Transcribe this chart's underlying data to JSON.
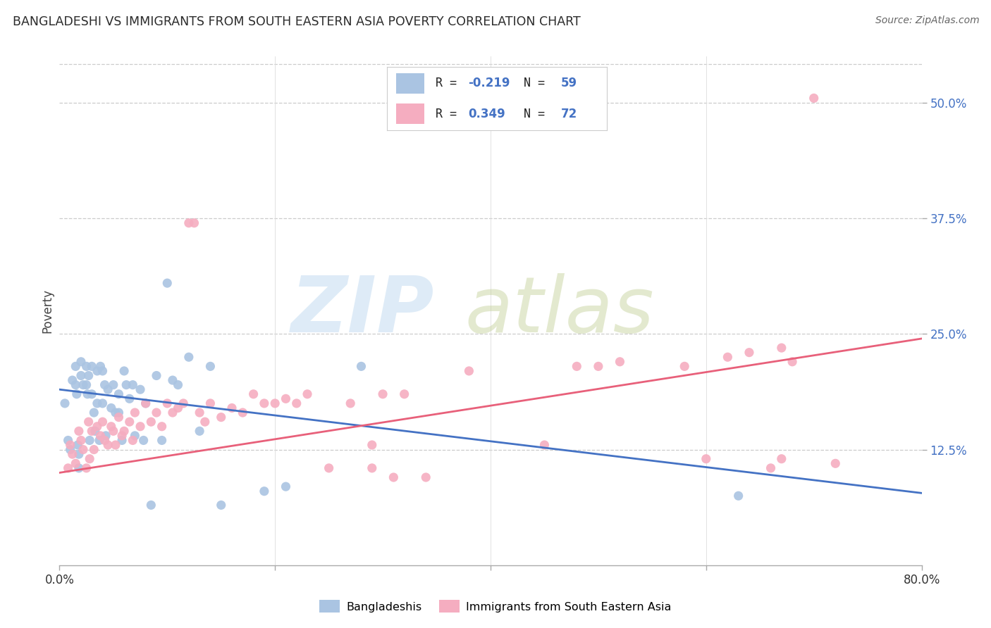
{
  "title": "BANGLADESHI VS IMMIGRANTS FROM SOUTH EASTERN ASIA POVERTY CORRELATION CHART",
  "source": "Source: ZipAtlas.com",
  "ylabel": "Poverty",
  "ytick_vals": [
    0.125,
    0.25,
    0.375,
    0.5
  ],
  "ytick_labels": [
    "12.5%",
    "25.0%",
    "37.5%",
    "50.0%"
  ],
  "xmin": 0.0,
  "xmax": 0.8,
  "ymin": 0.0,
  "ymax": 0.55,
  "color_blue": "#aac4e2",
  "color_pink": "#f5adc0",
  "line_blue": "#4472c4",
  "line_pink": "#e8607a",
  "label1": "Bangladeshis",
  "label2": "Immigrants from South Eastern Asia",
  "blue_line_start_y": 0.19,
  "blue_line_end_y": 0.078,
  "pink_line_start_y": 0.1,
  "pink_line_end_y": 0.245,
  "blue_x": [
    0.005,
    0.008,
    0.01,
    0.012,
    0.015,
    0.015,
    0.016,
    0.017,
    0.018,
    0.018,
    0.02,
    0.02,
    0.022,
    0.025,
    0.025,
    0.026,
    0.027,
    0.028,
    0.03,
    0.03,
    0.032,
    0.033,
    0.035,
    0.035,
    0.037,
    0.038,
    0.04,
    0.04,
    0.042,
    0.043,
    0.045,
    0.048,
    0.05,
    0.052,
    0.055,
    0.055,
    0.058,
    0.06,
    0.062,
    0.065,
    0.068,
    0.07,
    0.075,
    0.078,
    0.08,
    0.085,
    0.09,
    0.095,
    0.1,
    0.105,
    0.11,
    0.12,
    0.13,
    0.14,
    0.15,
    0.19,
    0.21,
    0.28,
    0.63
  ],
  "blue_y": [
    0.175,
    0.135,
    0.125,
    0.2,
    0.215,
    0.195,
    0.185,
    0.13,
    0.12,
    0.105,
    0.22,
    0.205,
    0.195,
    0.215,
    0.195,
    0.185,
    0.205,
    0.135,
    0.215,
    0.185,
    0.165,
    0.145,
    0.21,
    0.175,
    0.135,
    0.215,
    0.21,
    0.175,
    0.195,
    0.14,
    0.19,
    0.17,
    0.195,
    0.165,
    0.185,
    0.165,
    0.135,
    0.21,
    0.195,
    0.18,
    0.195,
    0.14,
    0.19,
    0.135,
    0.175,
    0.065,
    0.205,
    0.135,
    0.305,
    0.2,
    0.195,
    0.225,
    0.145,
    0.215,
    0.065,
    0.08,
    0.085,
    0.215,
    0.075
  ],
  "pink_x": [
    0.008,
    0.01,
    0.012,
    0.015,
    0.018,
    0.02,
    0.022,
    0.025,
    0.027,
    0.028,
    0.03,
    0.032,
    0.035,
    0.038,
    0.04,
    0.042,
    0.045,
    0.048,
    0.05,
    0.052,
    0.055,
    0.058,
    0.06,
    0.065,
    0.068,
    0.07,
    0.075,
    0.08,
    0.085,
    0.09,
    0.095,
    0.1,
    0.105,
    0.11,
    0.115,
    0.12,
    0.125,
    0.13,
    0.135,
    0.14,
    0.15,
    0.16,
    0.17,
    0.18,
    0.19,
    0.2,
    0.21,
    0.22,
    0.23,
    0.25,
    0.27,
    0.29,
    0.3,
    0.31,
    0.32,
    0.34,
    0.29,
    0.38,
    0.45,
    0.48,
    0.5,
    0.52,
    0.58,
    0.6,
    0.62,
    0.64,
    0.66,
    0.67,
    0.68,
    0.7,
    0.72,
    0.67
  ],
  "pink_y": [
    0.105,
    0.13,
    0.12,
    0.11,
    0.145,
    0.135,
    0.125,
    0.105,
    0.155,
    0.115,
    0.145,
    0.125,
    0.15,
    0.14,
    0.155,
    0.135,
    0.13,
    0.15,
    0.145,
    0.13,
    0.16,
    0.14,
    0.145,
    0.155,
    0.135,
    0.165,
    0.15,
    0.175,
    0.155,
    0.165,
    0.15,
    0.175,
    0.165,
    0.17,
    0.175,
    0.37,
    0.37,
    0.165,
    0.155,
    0.175,
    0.16,
    0.17,
    0.165,
    0.185,
    0.175,
    0.175,
    0.18,
    0.175,
    0.185,
    0.105,
    0.175,
    0.105,
    0.185,
    0.095,
    0.185,
    0.095,
    0.13,
    0.21,
    0.13,
    0.215,
    0.215,
    0.22,
    0.215,
    0.115,
    0.225,
    0.23,
    0.105,
    0.235,
    0.22,
    0.505,
    0.11,
    0.115
  ]
}
